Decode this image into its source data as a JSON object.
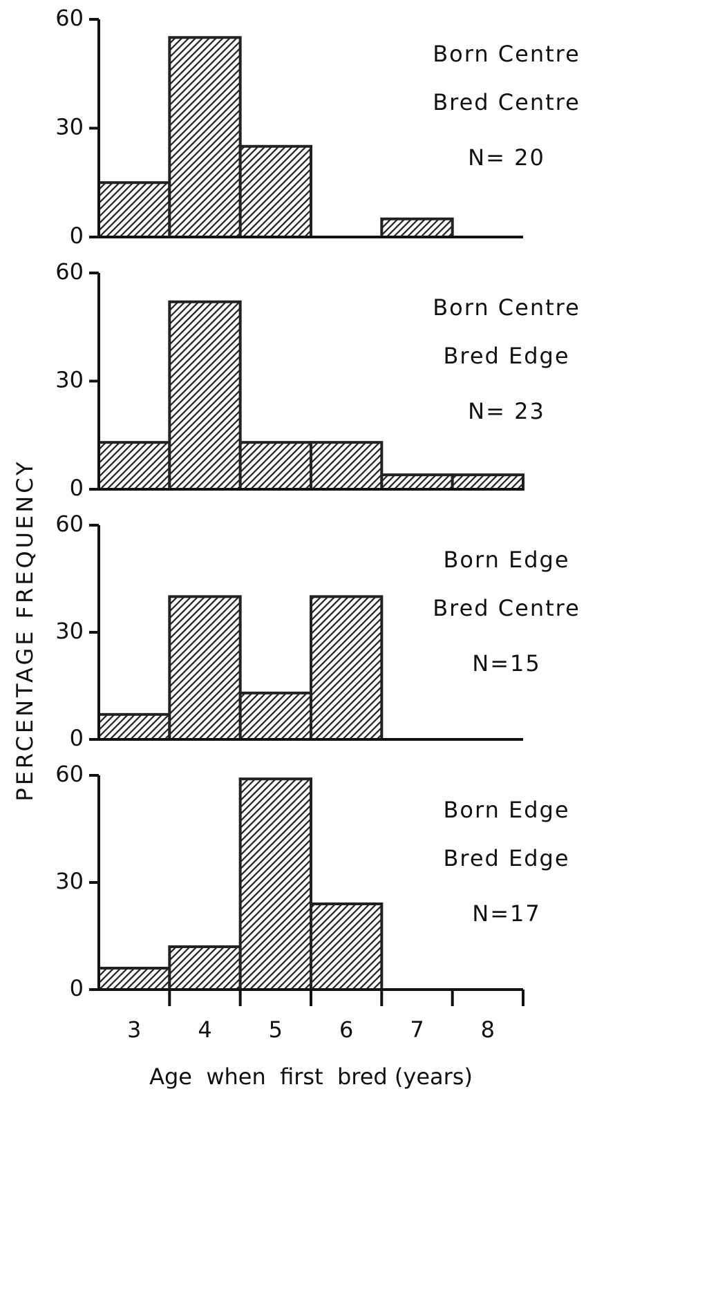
{
  "ylabel": "PERCENTAGE FREQUENCY",
  "chart_data": [
    {
      "type": "histogram",
      "annotations": [
        "Born Centre",
        "Bred Centre",
        "N= 20"
      ],
      "bins": [
        2.5,
        3.5,
        4.5,
        5.5,
        6.5,
        7.5,
        8.5
      ],
      "values": [
        15,
        55,
        25,
        0,
        5,
        0
      ],
      "ylim": [
        0,
        60
      ],
      "yticks": [
        0,
        30,
        60
      ],
      "xlim": [
        2.5,
        8.5
      ],
      "color": "#222"
    },
    {
      "type": "histogram",
      "annotations": [
        "Born Centre",
        "Bred Edge",
        "N= 23"
      ],
      "bins": [
        2.5,
        3.5,
        4.5,
        5.5,
        6.5,
        7.5,
        8.5
      ],
      "values": [
        13,
        52,
        13,
        13,
        4,
        4
      ],
      "ylim": [
        0,
        60
      ],
      "yticks": [
        0,
        30,
        60
      ],
      "xlim": [
        2.5,
        8.5
      ],
      "color": "#222"
    },
    {
      "type": "histogram",
      "annotations": [
        "Born Edge",
        "Bred Centre",
        "N=15"
      ],
      "bins": [
        2.5,
        3.5,
        4.5,
        5.5,
        6.5,
        7.5,
        8.5
      ],
      "values": [
        7,
        40,
        13,
        40,
        0,
        0
      ],
      "ylim": [
        0,
        60
      ],
      "yticks": [
        0,
        30,
        60
      ],
      "xlim": [
        2.5,
        8.5
      ],
      "color": "#222"
    },
    {
      "type": "histogram",
      "annotations": [
        "Born Edge",
        "Bred Edge",
        "N=17"
      ],
      "bins": [
        2.5,
        3.5,
        4.5,
        5.5,
        6.5,
        7.5,
        8.5
      ],
      "values": [
        6,
        12,
        59,
        24,
        0,
        0
      ],
      "ylim": [
        0,
        60
      ],
      "yticks": [
        0,
        30,
        60
      ],
      "xlim": [
        2.5,
        8.5
      ],
      "color": "#222",
      "xticks": [
        3,
        4,
        5,
        6,
        7,
        8
      ],
      "xlabel": "Age  when  first  bred (years)"
    }
  ]
}
